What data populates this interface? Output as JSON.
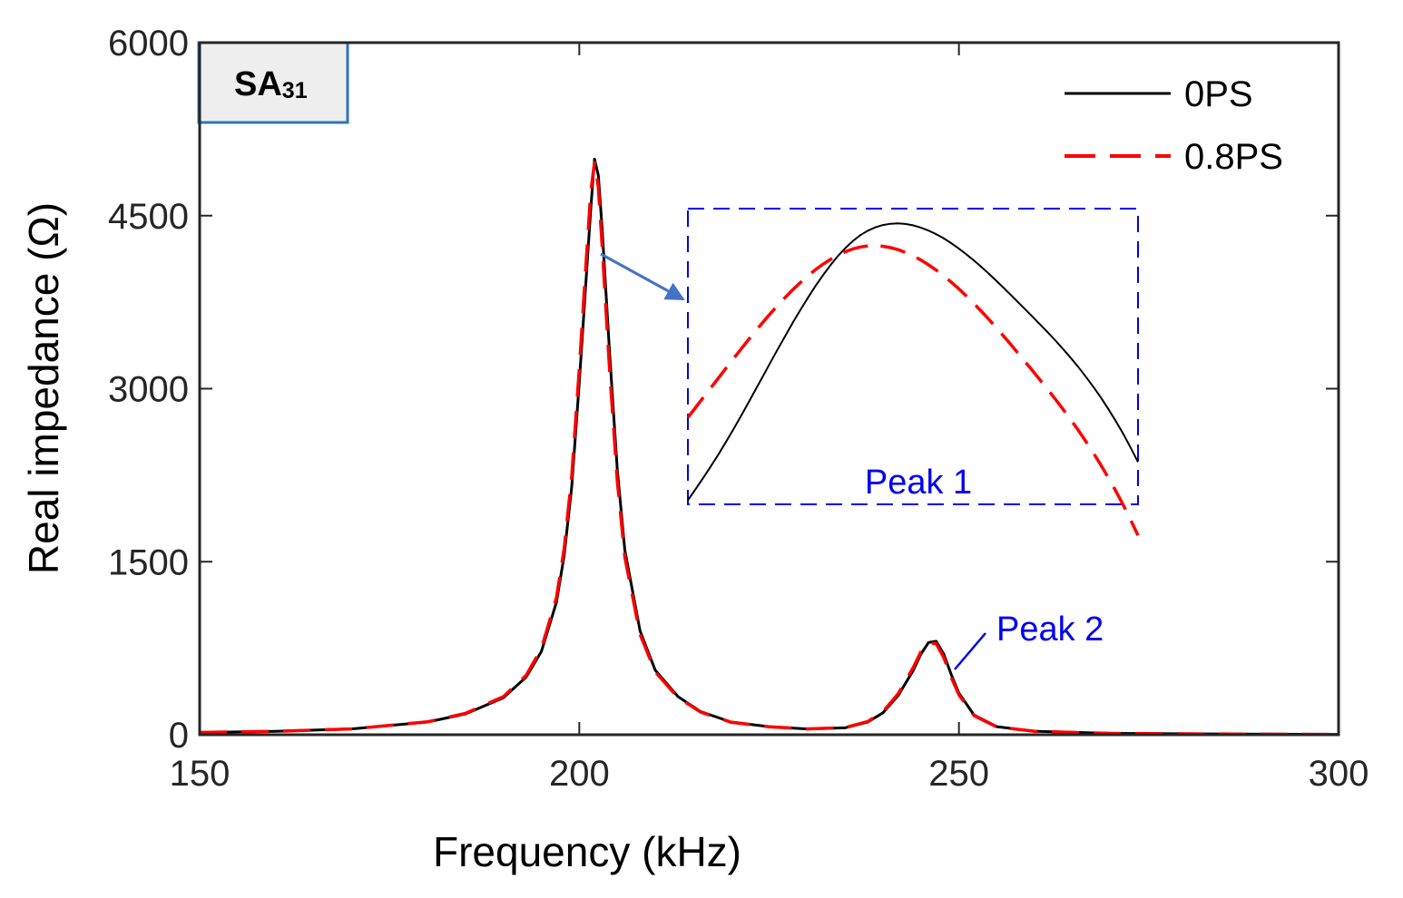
{
  "chart_data": {
    "type": "line",
    "xlabel": "Frequency (kHz)",
    "ylabel": "Real impedance (Ω)",
    "xlim": [
      150,
      300
    ],
    "ylim": [
      0,
      6000
    ],
    "x_ticks": [
      150,
      200,
      250,
      300
    ],
    "y_ticks": [
      0,
      1500,
      3000,
      4500,
      6000
    ],
    "x_tick_labels": [
      "150",
      "200",
      "250",
      "300"
    ],
    "y_tick_labels": [
      "0",
      "1500",
      "3000",
      "4500",
      "6000"
    ],
    "grid": false,
    "legend_position": "top-right",
    "badge": {
      "main": "SA",
      "sub": "31"
    },
    "series": [
      {
        "name": "0PS",
        "color": "#000000",
        "style": "solid",
        "x": [
          150,
          160,
          170,
          180,
          185,
          190,
          193,
          195,
          197,
          198,
          199,
          200,
          201,
          201.5,
          202,
          202.5,
          203,
          204,
          205,
          206,
          208,
          210,
          213,
          216,
          220,
          225,
          230,
          235,
          238,
          240,
          242,
          244,
          245,
          246,
          247,
          248,
          249,
          250,
          252,
          255,
          260,
          270,
          280,
          290,
          300
        ],
        "y": [
          20,
          30,
          50,
          110,
          180,
          320,
          500,
          720,
          1150,
          1550,
          2150,
          3050,
          4050,
          4550,
          4990,
          4850,
          4400,
          3300,
          2300,
          1600,
          900,
          560,
          330,
          200,
          110,
          70,
          50,
          60,
          110,
          190,
          340,
          560,
          700,
          800,
          810,
          700,
          520,
          360,
          170,
          70,
          30,
          12,
          8,
          5,
          3
        ]
      },
      {
        "name": "0.8PS",
        "color": "#ff0000",
        "style": "dashed",
        "x": [
          150,
          160,
          170,
          180,
          185,
          190,
          193,
          195,
          197,
          198,
          199,
          200,
          201,
          201.5,
          202,
          202.5,
          203,
          204,
          205,
          206,
          208,
          210,
          213,
          216,
          220,
          225,
          230,
          235,
          238,
          240,
          242,
          244,
          245,
          246,
          247,
          248,
          249,
          250,
          252,
          255,
          260,
          270,
          280,
          290,
          300
        ],
        "y": [
          20,
          30,
          50,
          112,
          185,
          330,
          515,
          745,
          1190,
          1610,
          2240,
          3170,
          4200,
          4700,
          4960,
          4750,
          4250,
          3150,
          2200,
          1540,
          870,
          545,
          322,
          196,
          108,
          69,
          50,
          62,
          115,
          200,
          355,
          585,
          720,
          795,
          790,
          670,
          495,
          345,
          165,
          68,
          29,
          12,
          8,
          5,
          3
        ]
      }
    ],
    "annotations": {
      "inset_label": "Peak 1",
      "peak2_label": "Peak 2",
      "annotation_color": "#0000ee",
      "arrow_color": "#4472c4"
    }
  }
}
